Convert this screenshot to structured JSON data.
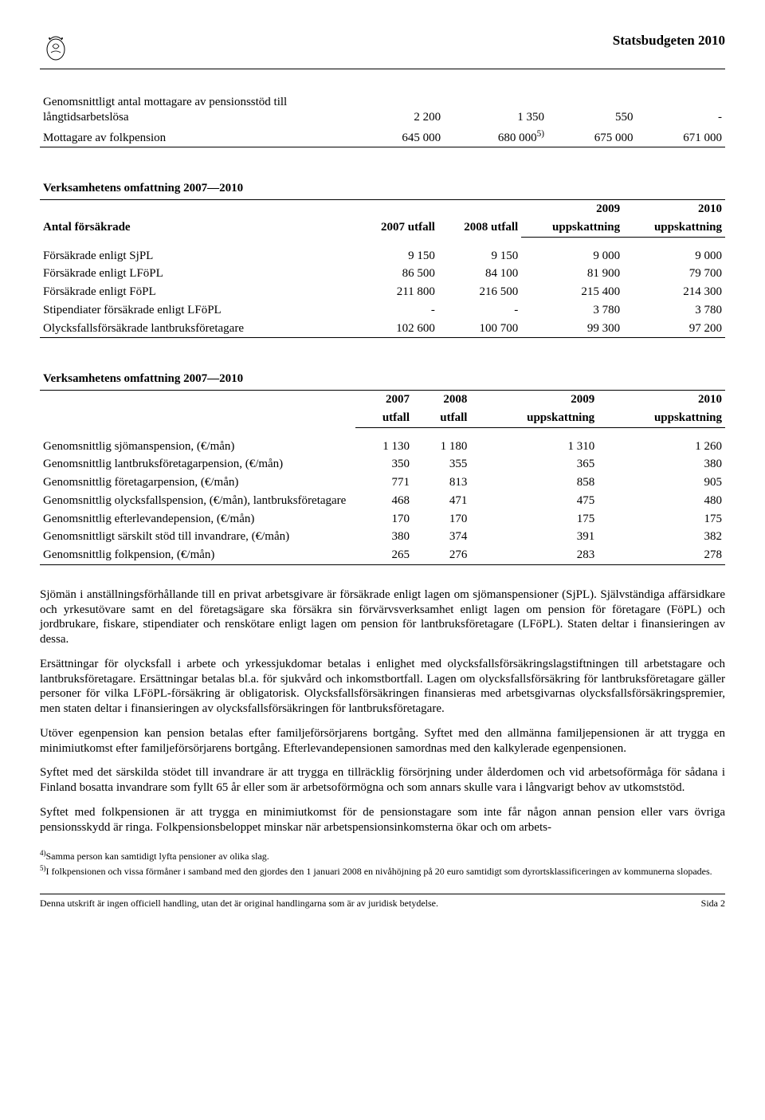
{
  "header": {
    "title": "Statsbudgeten 2010"
  },
  "table1": {
    "rows": [
      {
        "label": "Genomsnittligt antal mottagare av pensionsstöd till långtidsarbetslösa",
        "c1": "2 200",
        "c2": "1 350",
        "c3": "550",
        "c4": "-"
      },
      {
        "label": "Mottagare av folkpension",
        "c1": "645 000",
        "c2_html": "680 000<sup>5)</sup>",
        "c3": "675 000",
        "c4": "671 000"
      }
    ]
  },
  "table2": {
    "title": "Verksamhetens omfattning 2007—2010",
    "headers": {
      "r0": "Antal försäkrade",
      "c1": "2007 utfall",
      "c2": "2008 utfall",
      "c3a": "2009",
      "c3b": "uppskattning",
      "c4a": "2010",
      "c4b": "uppskattning"
    },
    "rows": [
      {
        "label": "Försäkrade enligt SjPL",
        "c1": "9 150",
        "c2": "9 150",
        "c3": "9 000",
        "c4": "9 000"
      },
      {
        "label": "Försäkrade enligt LFöPL",
        "c1": "86 500",
        "c2": "84 100",
        "c3": "81 900",
        "c4": "79 700"
      },
      {
        "label": "Försäkrade enligt FöPL",
        "c1": "211 800",
        "c2": "216 500",
        "c3": "215 400",
        "c4": "214 300"
      },
      {
        "label": "Stipendiater försäkrade enligt LFöPL",
        "c1": "-",
        "c2": "-",
        "c3": "3 780",
        "c4": "3 780"
      },
      {
        "label": "Olycksfallsförsäkrade lantbruksföretagare",
        "c1": "102 600",
        "c2": "100 700",
        "c3": "99 300",
        "c4": "97 200"
      }
    ]
  },
  "table3": {
    "title": "Verksamhetens omfattning 2007—2010",
    "headers": {
      "c1a": "2007",
      "c1b": "utfall",
      "c2a": "2008",
      "c2b": "utfall",
      "c3a": "2009",
      "c3b": "uppskattning",
      "c4a": "2010",
      "c4b": "uppskattning"
    },
    "rows": [
      {
        "label": "Genomsnittlig sjömanspension, (€/mån)",
        "c1": "1 130",
        "c2": "1 180",
        "c3": "1 310",
        "c4": "1 260"
      },
      {
        "label": "Genomsnittlig lantbruksföretagarpension, (€/mån)",
        "c1": "350",
        "c2": "355",
        "c3": "365",
        "c4": "380"
      },
      {
        "label": "Genomsnittlig företagarpension, (€/mån)",
        "c1": "771",
        "c2": "813",
        "c3": "858",
        "c4": "905"
      },
      {
        "label": "Genomsnittlig olycksfallspension, (€/mån), lantbruksföretagare",
        "c1": "468",
        "c2": "471",
        "c3": "475",
        "c4": "480"
      },
      {
        "label": "Genomsnittlig efterlevandepension, (€/mån)",
        "c1": "170",
        "c2": "170",
        "c3": "175",
        "c4": "175"
      },
      {
        "label": "Genomsnittligt särskilt stöd till invandrare, (€/mån)",
        "c1": "380",
        "c2": "374",
        "c3": "391",
        "c4": "382"
      },
      {
        "label": "Genomsnittlig folkpension, (€/mån)",
        "c1": "265",
        "c2": "276",
        "c3": "283",
        "c4": "278"
      }
    ]
  },
  "paragraphs": {
    "p1": "Sjömän i anställningsförhållande till en privat arbetsgivare är försäkrade enligt lagen om sjömanspensioner (SjPL). Självständiga affärsidkare och yrkesutövare samt en del företagsägare ska försäkra sin förvärvsverksamhet enligt lagen om pension för företagare (FöPL) och jordbrukare, fiskare, stipendiater och renskötare enligt lagen om pension för lantbruksföretagare (LFöPL). Staten deltar i finansieringen av dessa.",
    "p2": "Ersättningar för olycksfall i arbete och yrkessjukdomar betalas i enlighet med olycksfallsförsäkringslagstiftningen till arbetstagare och lantbruksföretagare. Ersättningar betalas bl.a. för sjukvård och inkomstbortfall. Lagen om olycksfallsförsäkring för lantbruksföretagare gäller personer för vilka LFöPL-försäkring är obligatorisk. Olycksfallsförsäkringen finansieras med arbetsgivarnas olycksfallsförsäkringspremier, men staten deltar i finansieringen av olycksfallsförsäkringen för lantbruksföretagare.",
    "p3": "Utöver egenpension kan pension betalas efter familjeförsörjarens bortgång. Syftet med den allmänna familjepensionen är att trygga en minimiutkomst efter familjeförsörjarens bortgång. Efterlevandepensionen samordnas med den kalkylerade egenpensionen.",
    "p4": "Syftet med det särskilda stödet till invandrare är att trygga en tillräcklig försörjning under ålderdomen och vid arbetsoförmåga för sådana i Finland bosatta invandrare som fyllt 65 år eller som är arbetsoförmögna och som annars skulle vara i långvarigt behov av utkomststöd.",
    "p5": "Syftet med folkpensionen är att trygga en minimiutkomst för de pensionstagare som inte får någon annan pension eller vars övriga pensionsskydd är ringa. Folkpensionsbeloppet minskar när arbetspensionsinkomsterna ökar och om arbets-"
  },
  "footnotes": {
    "f4_html": "<sup>4)</sup>Samma person kan samtidigt lyfta pensioner av olika slag.",
    "f5_html": "<sup>5)</sup>I folkpensionen och vissa förmåner i samband med den gjordes den 1 januari 2008 en nivåhöjning på 20 euro samtidigt som dyrortsklassificeringen av kommunerna slopades."
  },
  "footer": {
    "left": "Denna utskrift är ingen officiell handling, utan det är original handlingarna som är av juridisk betydelse.",
    "right": "Sida 2"
  }
}
